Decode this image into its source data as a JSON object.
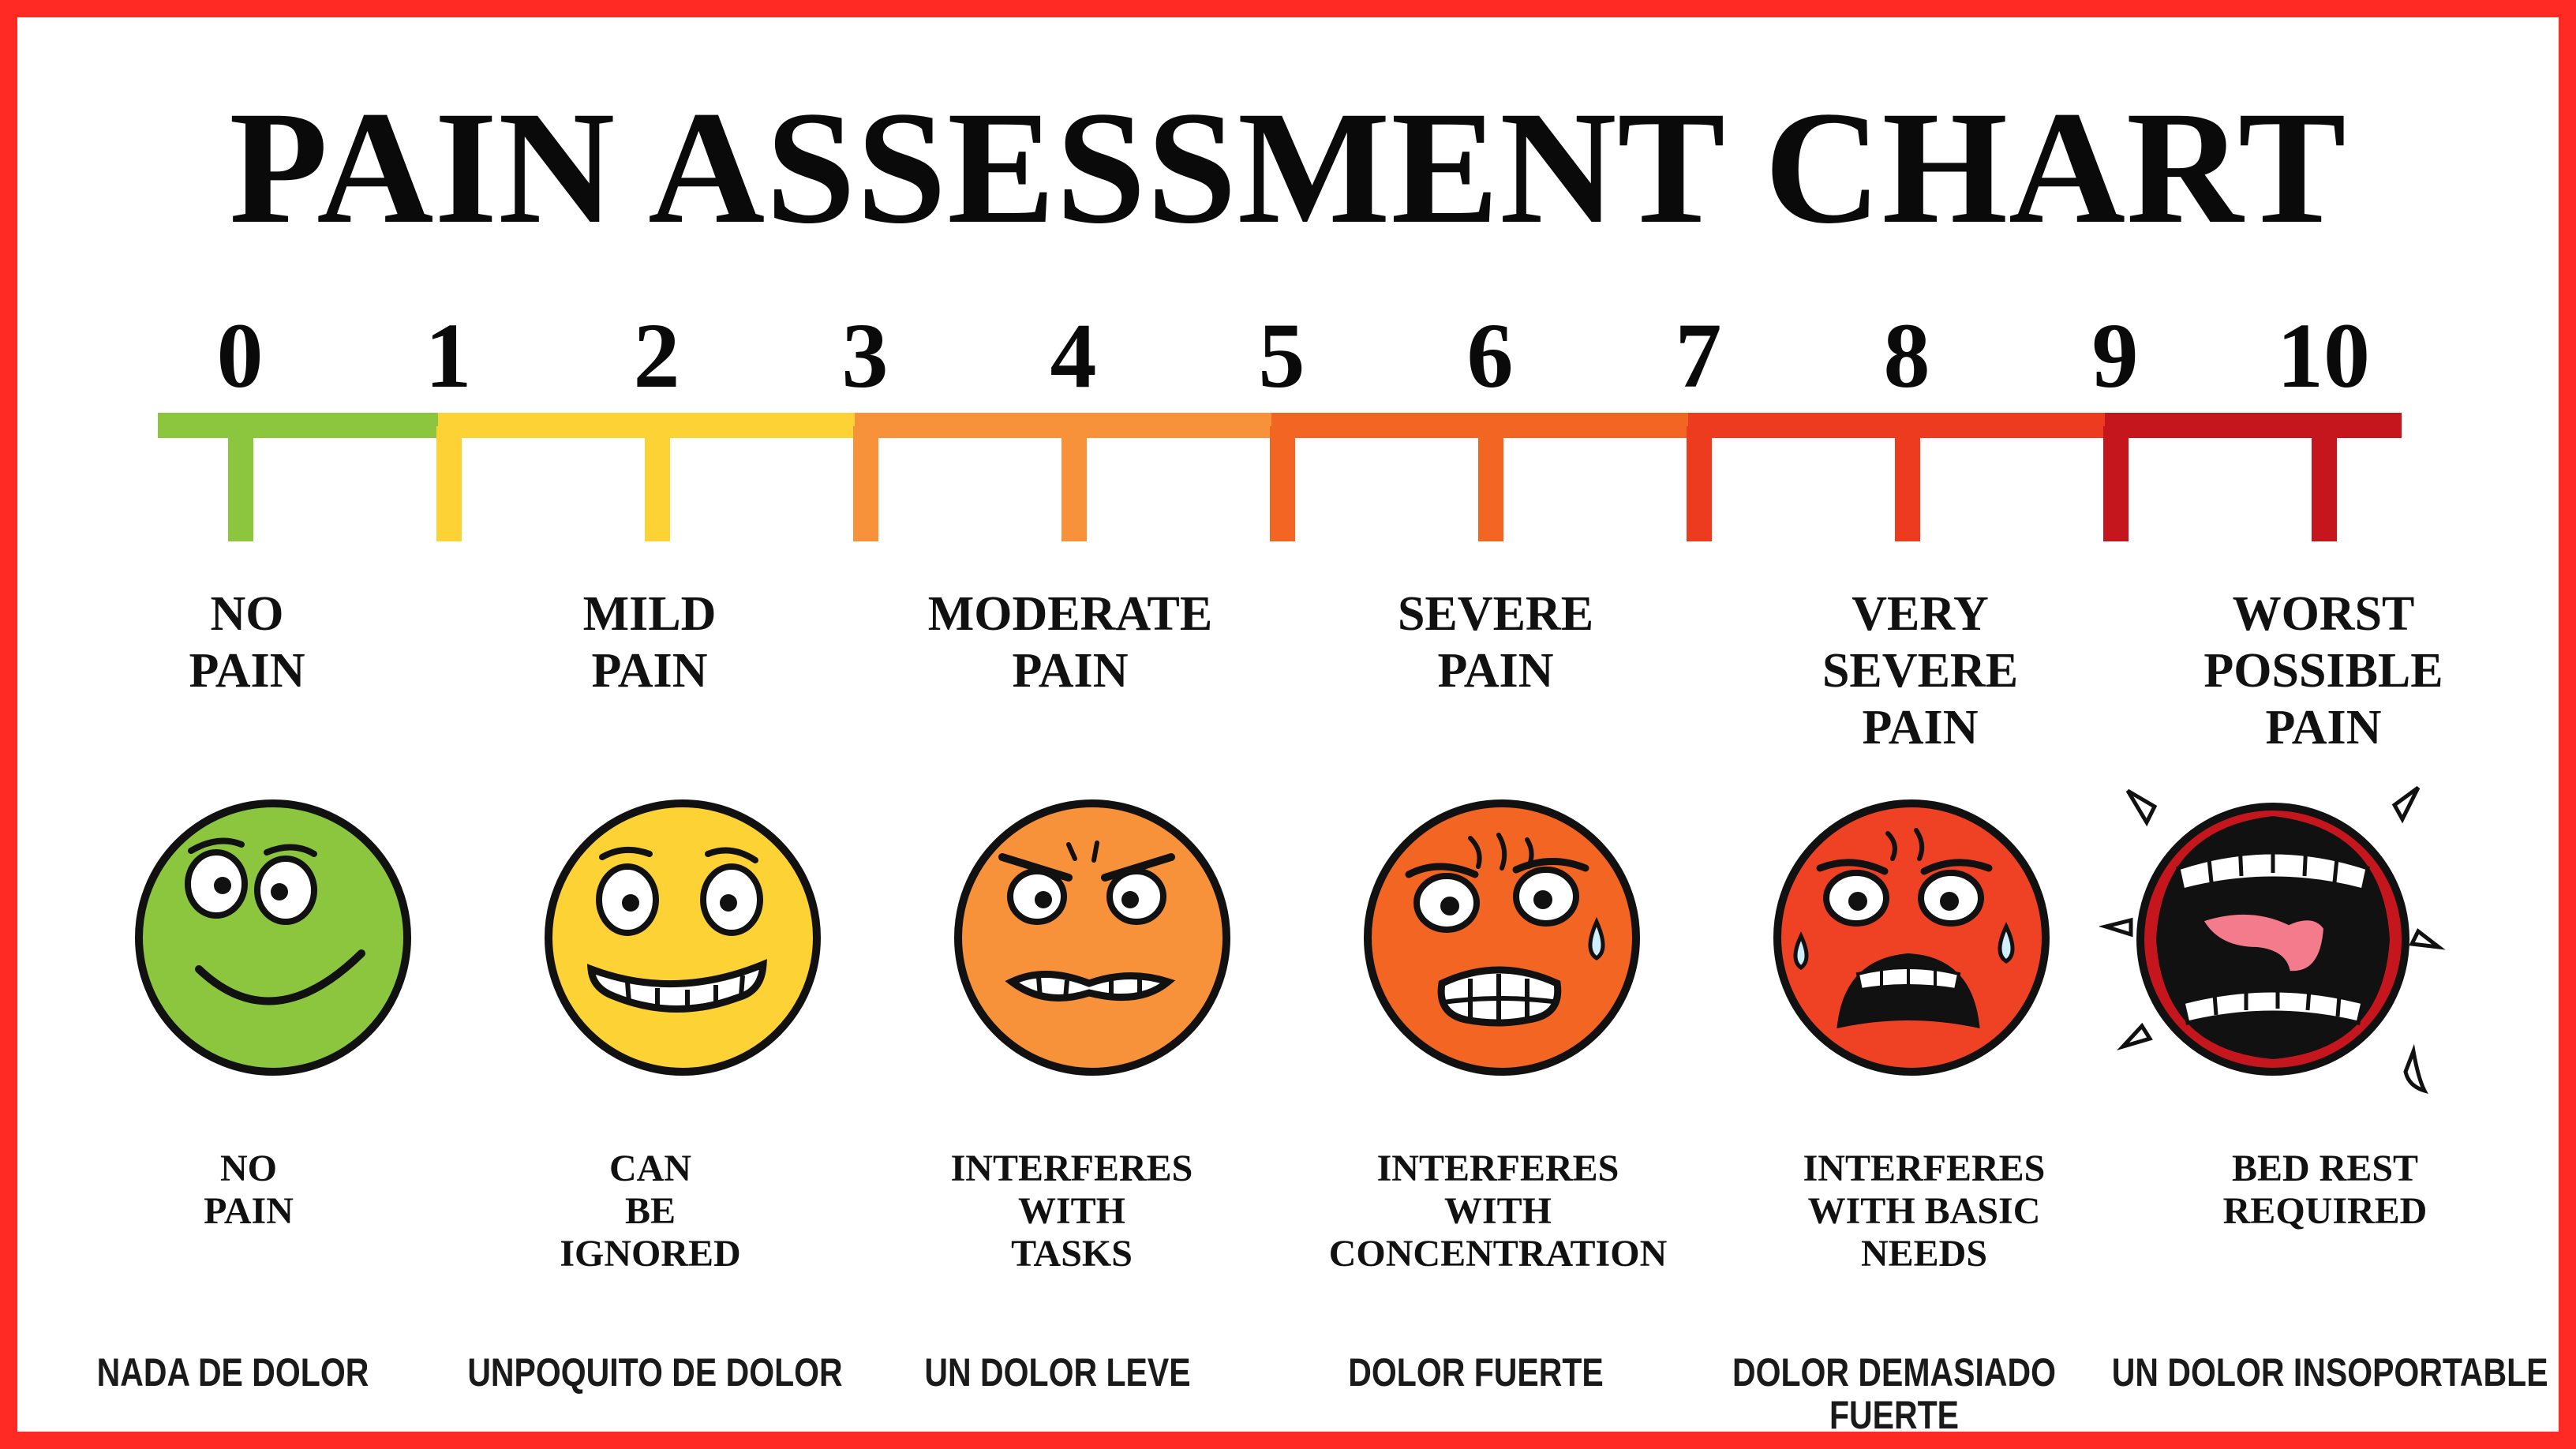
{
  "title": "PAIN ASSESSMENT CHART",
  "scale_numbers": [
    "0",
    "1",
    "2",
    "3",
    "4",
    "5",
    "6",
    "7",
    "8",
    "9",
    "10"
  ],
  "colors": {
    "border": "#ff2a24",
    "segment_0_1": "#8cc63f",
    "segment_1_3": "#fdd235",
    "segment_3_5": "#f7923a",
    "segment_5_7": "#f26522",
    "segment_7_9": "#ed3b1f",
    "segment_9_10": "#c4161c"
  },
  "categories": [
    {
      "label": [
        "NO",
        "PAIN"
      ],
      "description": [
        "NO",
        "PAIN"
      ],
      "spanish": [
        "NADA DE DOLOR"
      ],
      "face_color": "#8cc63f",
      "face_icon": "happy-face-icon"
    },
    {
      "label": [
        "MILD",
        "PAIN"
      ],
      "description": [
        "CAN",
        "BE",
        "IGNORED"
      ],
      "spanish": [
        "UNPOQUITO DE DOLOR"
      ],
      "face_color": "#fdd235",
      "face_icon": "grimace-smile-face-icon"
    },
    {
      "label": [
        "MODERATE",
        "PAIN"
      ],
      "description": [
        "INTERFERES",
        "WITH",
        "TASKS"
      ],
      "spanish": [
        "UN DOLOR LEVE"
      ],
      "face_color": "#f7923a",
      "face_icon": "frowning-face-icon"
    },
    {
      "label": [
        "SEVERE",
        "PAIN"
      ],
      "description": [
        "INTERFERES",
        "WITH",
        "CONCENTRATION"
      ],
      "spanish": [
        "DOLOR FUERTE"
      ],
      "face_color": "#f26522",
      "face_icon": "distressed-face-icon"
    },
    {
      "label": [
        "VERY",
        "SEVERE",
        "PAIN"
      ],
      "description": [
        "INTERFERES",
        "WITH BASIC",
        "NEEDS"
      ],
      "spanish": [
        "DOLOR DEMASIADO",
        "FUERTE"
      ],
      "face_color": "#ef4123",
      "face_icon": "crying-face-icon"
    },
    {
      "label": [
        "WORST",
        "POSSIBLE",
        "PAIN"
      ],
      "description": [
        "BED REST",
        "REQUIRED"
      ],
      "spanish": [
        "UN DOLOR INSOPORTABLE"
      ],
      "face_color": "#c4161c",
      "face_icon": "screaming-face-icon"
    }
  ]
}
